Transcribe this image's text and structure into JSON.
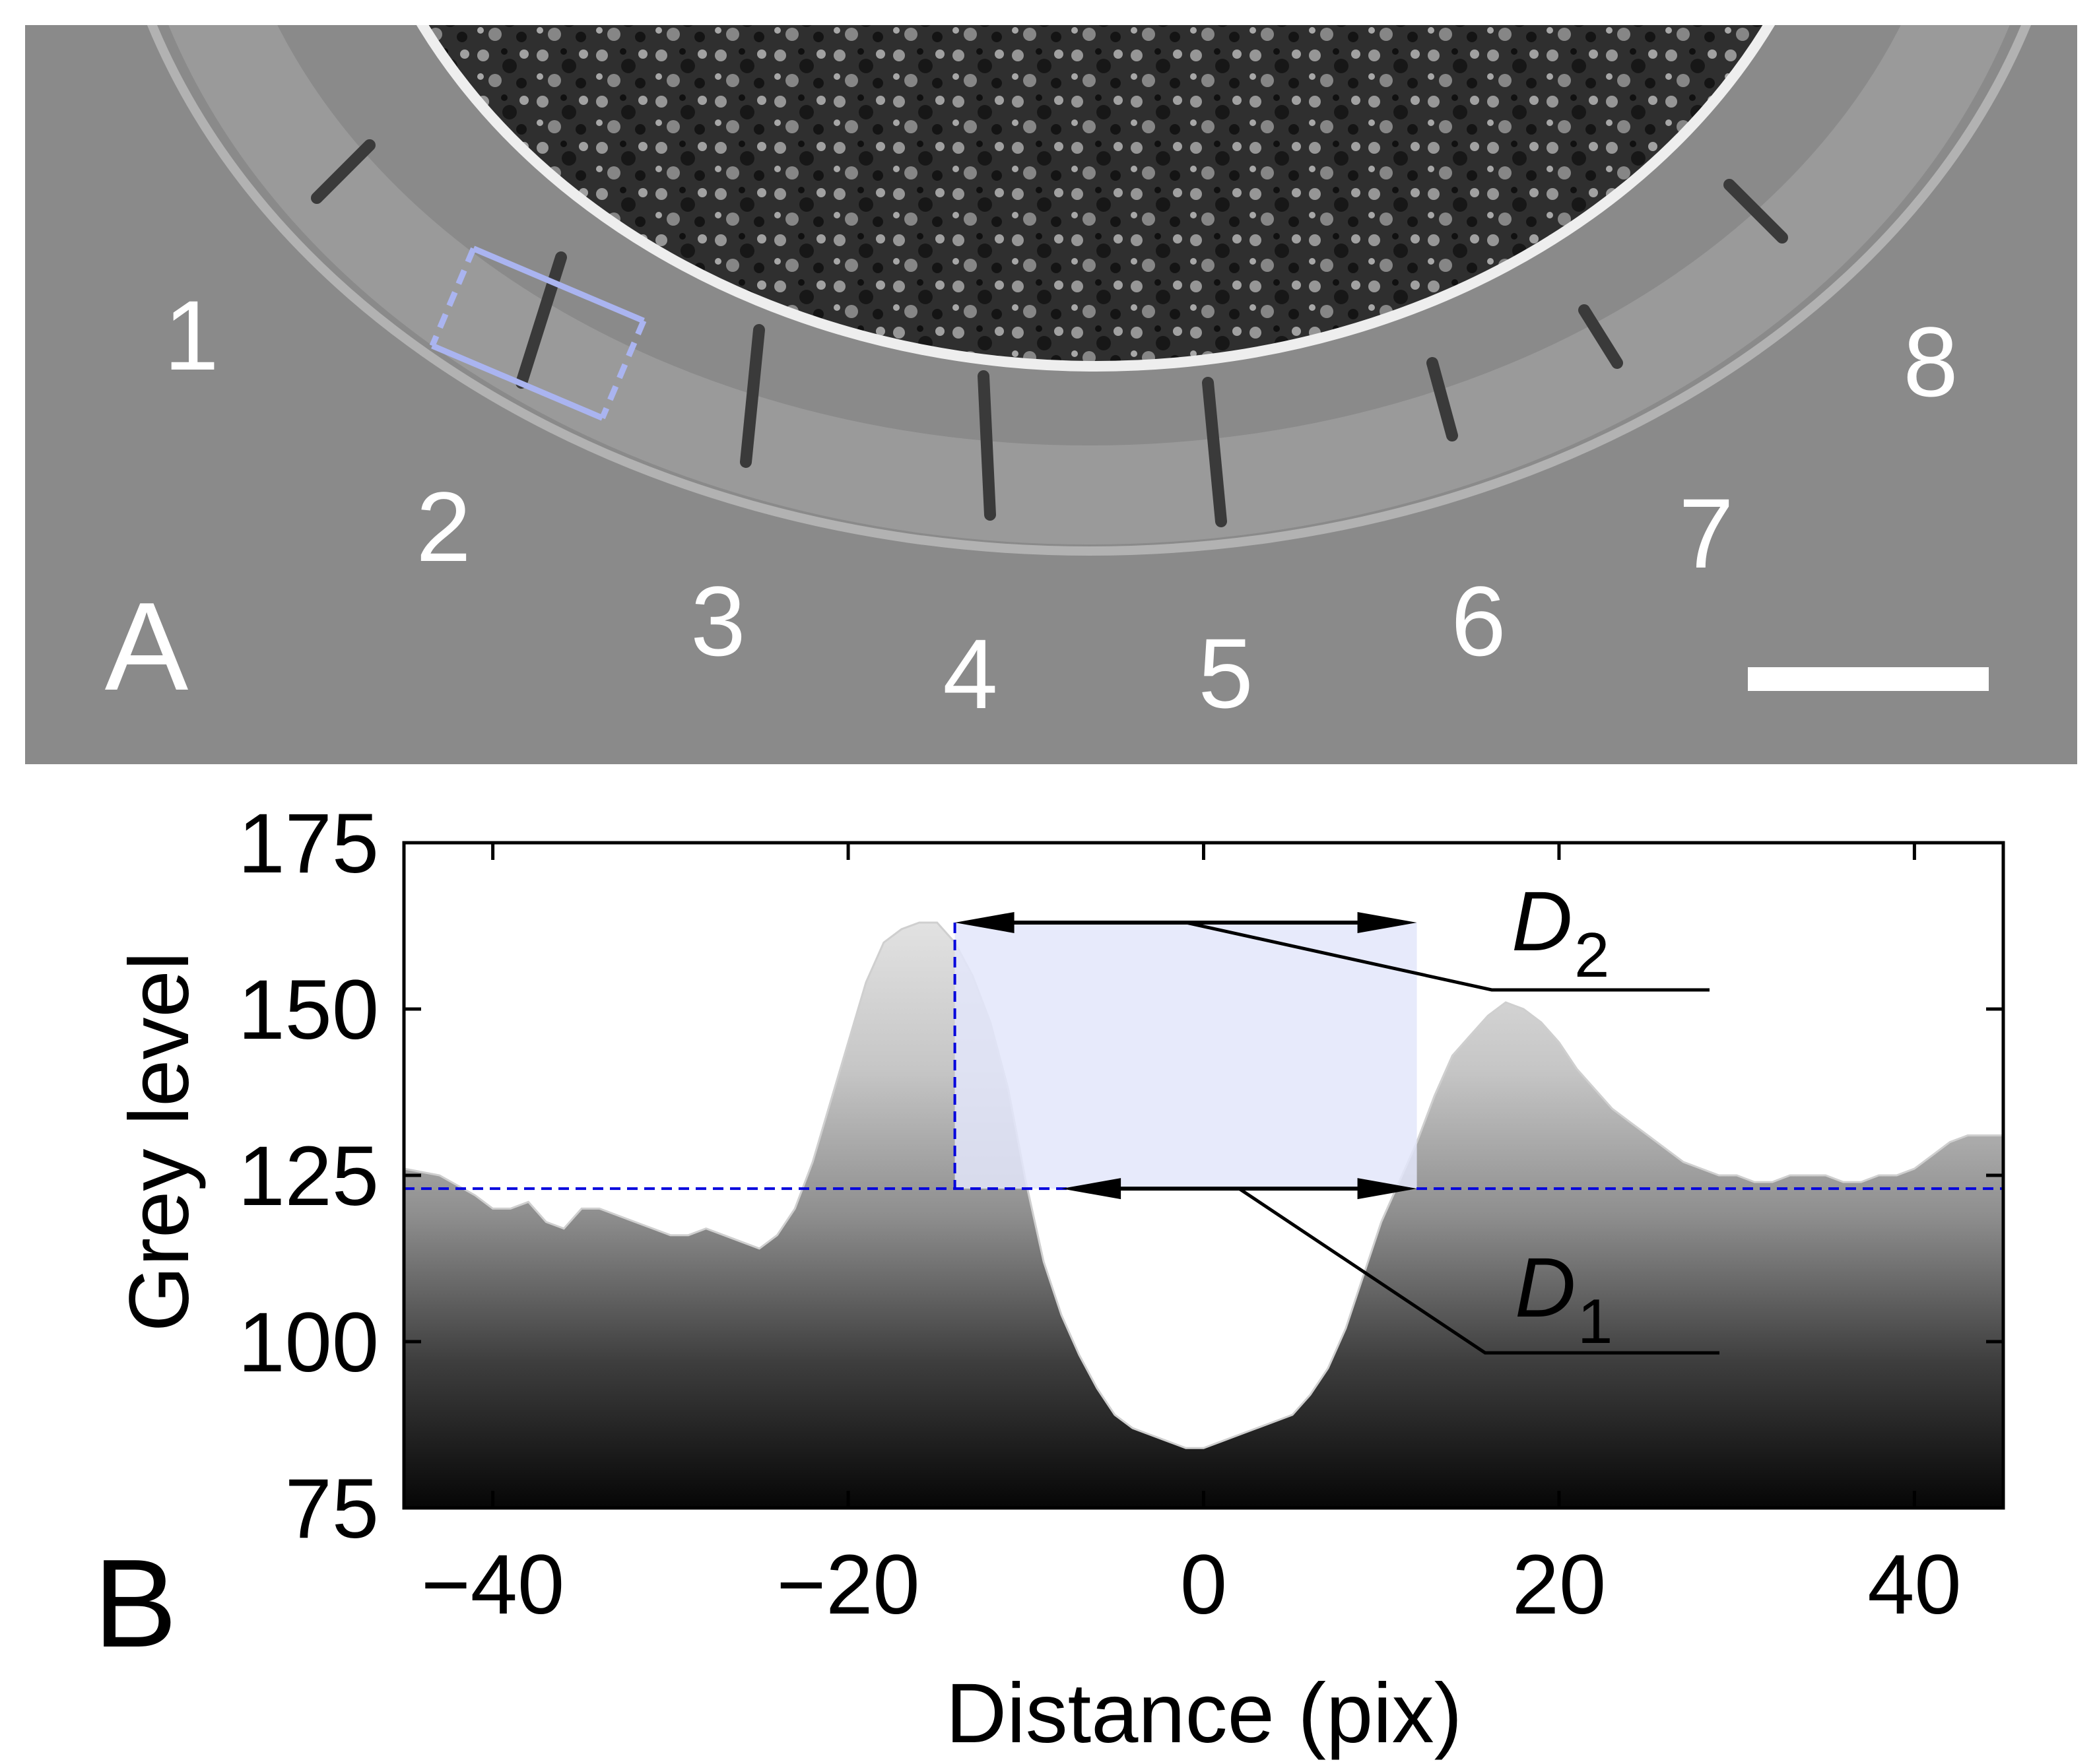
{
  "panel_a": {
    "label": "A",
    "segment_numbers": [
      "1",
      "2",
      "3",
      "4",
      "5",
      "6",
      "7",
      "8"
    ],
    "colors": {
      "background": "#8a8a8a",
      "selection_box": "#aab4f0",
      "scale_bar": "#ffffff"
    }
  },
  "panel_b": {
    "label": "B"
  },
  "chart_data": {
    "type": "area",
    "xlabel": "Distance (pix)",
    "ylabel": "Grey level",
    "xlim": [
      -45,
      45
    ],
    "ylim": [
      75,
      175
    ],
    "xticks": [
      -40,
      -20,
      0,
      20,
      40
    ],
    "xtick_labels": [
      "−40",
      "−20",
      "0",
      "20",
      "40"
    ],
    "yticks": [
      75,
      100,
      125,
      150,
      175
    ],
    "ytick_labels": [
      "75",
      "100",
      "125",
      "150",
      "175"
    ],
    "grid": false,
    "series": [
      {
        "x": [
          -45,
          -43,
          -41,
          -40,
          -39,
          -38,
          -37,
          -36,
          -35,
          -34,
          -33,
          -32,
          -31,
          -30,
          -29,
          -28,
          -27,
          -26,
          -25,
          -24,
          -23,
          -22,
          -21,
          -20,
          -19,
          -18,
          -17,
          -16,
          -15,
          -14,
          -13,
          -12,
          -11,
          -10,
          -9,
          -8,
          -7,
          -6,
          -5,
          -4,
          -3,
          -2,
          -1,
          0,
          1,
          2,
          3,
          4,
          5,
          6,
          7,
          8,
          9,
          10,
          11,
          12,
          13,
          14,
          15,
          16,
          17,
          18,
          19,
          20,
          21,
          22,
          23,
          24,
          25,
          26,
          27,
          28,
          29,
          30,
          31,
          32,
          33,
          34,
          35,
          36,
          37,
          38,
          39,
          40,
          41,
          42,
          43,
          44,
          45
        ],
        "y": [
          126,
          125,
          122,
          120,
          120,
          121,
          118,
          117,
          120,
          120,
          119,
          118,
          117,
          116,
          116,
          117,
          116,
          115,
          114,
          116,
          120,
          127,
          136,
          145,
          154,
          160,
          162,
          163,
          163,
          160,
          155,
          148,
          138,
          124,
          112,
          104,
          98,
          93,
          89,
          87,
          86,
          85,
          84,
          84,
          85,
          86,
          87,
          88,
          89,
          92,
          96,
          102,
          110,
          118,
          124,
          130,
          137,
          143,
          146,
          149,
          151,
          150,
          148,
          145,
          141,
          138,
          135,
          133,
          131,
          129,
          127,
          126,
          125,
          125,
          124,
          124,
          125,
          125,
          125,
          124,
          124,
          125,
          125,
          126,
          128,
          130,
          131,
          131,
          131
        ]
      }
    ],
    "threshold": 123,
    "annotations": [
      {
        "label": "D",
        "subscript": "2",
        "x_from": -14,
        "x_to": 12,
        "y": 163
      },
      {
        "label": "D",
        "subscript": "1",
        "x_from": -8,
        "x_to": 12,
        "y": 123
      }
    ],
    "shaded_region": {
      "x_from": -14,
      "x_to": 12,
      "y_from": 123,
      "y_to": 163,
      "color": "#e3e6fa"
    },
    "colors": {
      "threshold_line": "#0000dd",
      "arrows": "#000000"
    }
  }
}
